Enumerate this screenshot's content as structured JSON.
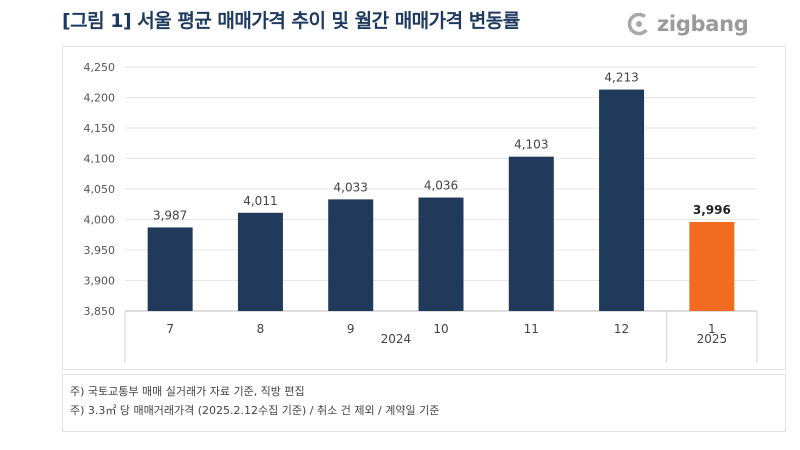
{
  "header": {
    "title": "[그림 1] 서울 평균 매매가격 추이 및 월간 매매가격 변동률"
  },
  "logo": {
    "text": "zigbang",
    "icon": "zigbang-logo-icon"
  },
  "notes": [
    "주) 국토교통부 매매 실거래가 자료 기준, 직방 편집",
    "주) 3.3㎡ 당 매매거래가격 (2025.2.12수집 기준) / 취소 건 제외 / 계약일 기준"
  ],
  "colors": {
    "primary": "#213a5c",
    "highlight": "#f26b21"
  },
  "chart_data": {
    "type": "bar",
    "categories": [
      "7",
      "8",
      "9",
      "10",
      "11",
      "12",
      "1"
    ],
    "groups": [
      {
        "label": "2024",
        "from": 0,
        "to": 5
      },
      {
        "label": "2025",
        "from": 6,
        "to": 6
      }
    ],
    "values": [
      3987,
      4011,
      4033,
      4036,
      4103,
      4213,
      3996
    ],
    "value_labels": [
      "3,987",
      "4,011",
      "4,033",
      "4,036",
      "4,103",
      "4,213",
      "3,996"
    ],
    "highlight_index": 6,
    "ylim": [
      3850,
      4250
    ],
    "yticks": [
      3850,
      3900,
      3950,
      4000,
      4050,
      4100,
      4150,
      4200,
      4250
    ],
    "ytick_labels": [
      "3,850",
      "3,900",
      "3,950",
      "4,000",
      "4,050",
      "4,100",
      "4,150",
      "4,200",
      "4,250"
    ],
    "grid": true,
    "title": "",
    "xlabel": "",
    "ylabel": ""
  }
}
